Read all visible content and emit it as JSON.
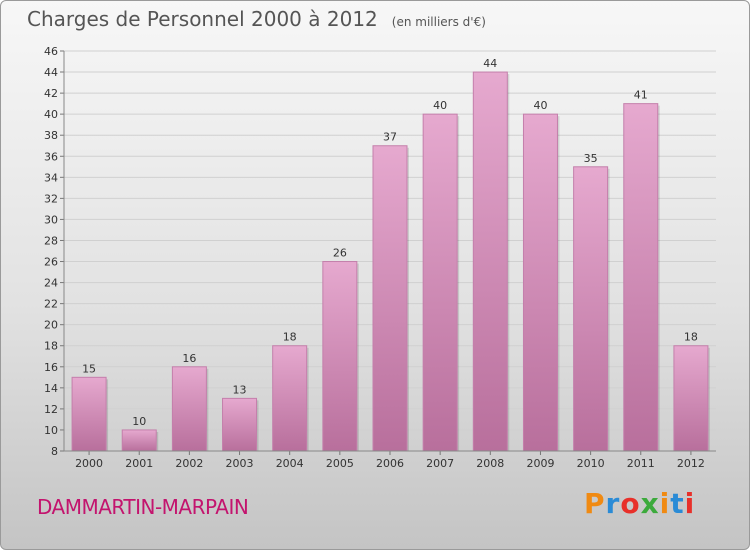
{
  "header": {
    "title": "Charges de Personnel 2000 à 2012",
    "subtitle": "(en milliers d'€)"
  },
  "footer": {
    "town": "DAMMARTIN-MARPAIN",
    "logo": "Proxiti"
  },
  "colors": {
    "bar_top": "#e6a9cf",
    "bar_bottom": "#b86f9c",
    "bar_edge": "#c47fab",
    "town": "#c3146e",
    "logo": [
      "#f08a12",
      "#2a8bd6",
      "#e8302a",
      "#3caa3c",
      "#f08a12",
      "#2a8bd6",
      "#e8302a"
    ]
  },
  "chart_data": {
    "type": "bar",
    "categories": [
      "2000",
      "2001",
      "2002",
      "2003",
      "2004",
      "2005",
      "2006",
      "2007",
      "2008",
      "2009",
      "2010",
      "2011",
      "2012"
    ],
    "values": [
      15,
      10,
      16,
      13,
      18,
      26,
      37,
      40,
      44,
      40,
      35,
      41,
      18
    ],
    "ylim": [
      8,
      46
    ],
    "yticks": [
      8,
      10,
      12,
      14,
      16,
      18,
      20,
      22,
      24,
      26,
      28,
      30,
      32,
      34,
      36,
      38,
      40,
      42,
      44,
      46
    ],
    "grid": true
  }
}
